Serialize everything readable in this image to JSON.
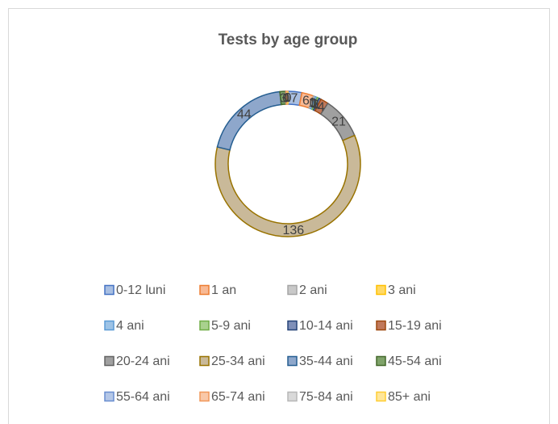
{
  "chart_data": {
    "type": "donut",
    "title": "Tests by age group",
    "categories": [
      "0-12 luni",
      "1 an",
      "2 ani",
      "3 ani",
      "4 ani",
      "5-9 ani",
      "10-14 ani",
      "15-19 ani",
      "20-24 ani",
      "25-34 ani",
      "35-44 ani",
      "45-54 ani",
      "55-64 ani",
      "65-74 ani",
      "75-84 ani",
      "85+ ani"
    ],
    "values": [
      7,
      6,
      1,
      0,
      1,
      1,
      1,
      4,
      21,
      136,
      44,
      3,
      0,
      1,
      0,
      0
    ],
    "colors": [
      "#a9bfe2",
      "#f8b994",
      "#c9c9c9",
      "#ffd966",
      "#9dc3e6",
      "#a9d18e",
      "#7f8fb8",
      "#c0785a",
      "#a0a0a0",
      "#c9b999",
      "#8ea7cb",
      "#7fa36a",
      "#b4c7e7",
      "#f9c8a8",
      "#d9d9d9",
      "#ffe699"
    ],
    "edge_colors": [
      "#4472c4",
      "#ed7d31",
      "#a5a5a5",
      "#ffc000",
      "#5b9bd5",
      "#70ad47",
      "#264478",
      "#9e480e",
      "#636363",
      "#997300",
      "#255e91",
      "#43682b",
      "#698ed0",
      "#f1975a",
      "#b7b7b7",
      "#ffcd33"
    ],
    "legend": "bottom"
  }
}
